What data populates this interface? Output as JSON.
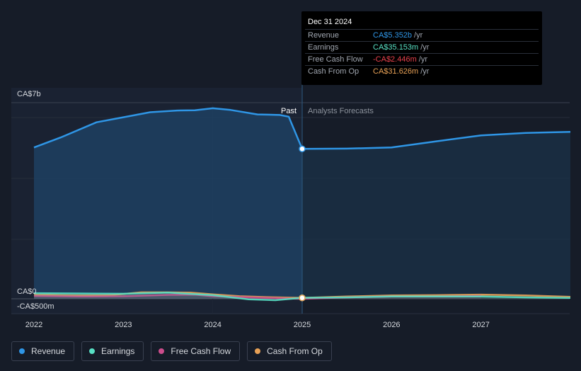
{
  "chart_data": {
    "type": "line",
    "x_axis_ticks": [
      "2022",
      "2023",
      "2024",
      "2025",
      "2026",
      "2027"
    ],
    "y_axis_labels": {
      "top": "CA$7b",
      "zero": "CA$0",
      "bottom": "-CA$500m"
    },
    "ylim": [
      -500000000,
      7000000000
    ],
    "xlim": [
      2021.75,
      2028.0
    ],
    "divider_x": 2025.0,
    "past_label": "Past",
    "forecast_label": "Analysts Forecasts",
    "series": [
      {
        "name": "Revenue",
        "color": "#2f96e6",
        "points": [
          [
            2022.0,
            5.4
          ],
          [
            2022.3,
            5.76
          ],
          [
            2022.7,
            6.3
          ],
          [
            2023.0,
            6.48
          ],
          [
            2023.3,
            6.66
          ],
          [
            2023.6,
            6.72
          ],
          [
            2023.8,
            6.73
          ],
          [
            2024.0,
            6.8
          ],
          [
            2024.2,
            6.74
          ],
          [
            2024.5,
            6.58
          ],
          [
            2024.75,
            6.56
          ],
          [
            2024.85,
            6.5
          ],
          [
            2025.0,
            5.35
          ],
          [
            2025.5,
            5.36
          ],
          [
            2026.0,
            5.4
          ],
          [
            2026.5,
            5.62
          ],
          [
            2027.0,
            5.83
          ],
          [
            2027.5,
            5.92
          ],
          [
            2028.0,
            5.96
          ]
        ]
      },
      {
        "name": "Earnings",
        "color": "#58e0c4",
        "points": [
          [
            2022.0,
            0.2
          ],
          [
            2022.5,
            0.19
          ],
          [
            2023.0,
            0.18
          ],
          [
            2023.5,
            0.22
          ],
          [
            2024.0,
            0.13
          ],
          [
            2024.4,
            -0.02
          ],
          [
            2024.7,
            -0.05
          ],
          [
            2025.0,
            0.035
          ],
          [
            2025.5,
            0.05
          ],
          [
            2026.0,
            0.08
          ],
          [
            2026.5,
            0.08
          ],
          [
            2027.0,
            0.08
          ],
          [
            2027.5,
            0.05
          ],
          [
            2028.0,
            0.03
          ]
        ]
      },
      {
        "name": "Free Cash Flow",
        "color": "#cc4d8c",
        "points": [
          [
            2022.0,
            0.1
          ],
          [
            2022.5,
            0.08
          ],
          [
            2023.0,
            0.09
          ],
          [
            2023.5,
            0.14
          ],
          [
            2023.8,
            0.15
          ],
          [
            2024.0,
            0.09
          ],
          [
            2024.5,
            0.04
          ],
          [
            2025.0,
            -0.002
          ],
          [
            2025.5,
            0.05
          ],
          [
            2026.0,
            0.08
          ],
          [
            2026.5,
            0.08
          ],
          [
            2027.0,
            0.1
          ]
        ]
      },
      {
        "name": "Cash From Op",
        "color": "#e8a156",
        "points": [
          [
            2022.0,
            0.14
          ],
          [
            2022.5,
            0.12
          ],
          [
            2022.8,
            0.12
          ],
          [
            2023.0,
            0.17
          ],
          [
            2023.2,
            0.23
          ],
          [
            2023.5,
            0.23
          ],
          [
            2023.75,
            0.22
          ],
          [
            2024.0,
            0.16
          ],
          [
            2024.3,
            0.09
          ],
          [
            2024.6,
            0.06
          ],
          [
            2025.0,
            0.032
          ],
          [
            2025.5,
            0.08
          ],
          [
            2026.0,
            0.12
          ],
          [
            2026.5,
            0.13
          ],
          [
            2027.0,
            0.15
          ],
          [
            2027.5,
            0.12
          ],
          [
            2028.0,
            0.07
          ]
        ]
      }
    ],
    "highlight_points": [
      {
        "series": "Revenue",
        "x": 2025.0,
        "y": 5.35
      },
      {
        "series": "Earnings",
        "x": 2025.0,
        "y": 0.035
      },
      {
        "series": "Cash From Op",
        "x": 2025.0,
        "y": 0.032
      }
    ],
    "value_unit_note": "y values in billions CA$"
  },
  "tooltip": {
    "date": "Dec 31 2024",
    "rows": [
      {
        "label": "Revenue",
        "value": "CA$5.352b",
        "unit": "/yr",
        "color": "#2f96e6"
      },
      {
        "label": "Earnings",
        "value": "CA$35.153m",
        "unit": "/yr",
        "color": "#58e0c4"
      },
      {
        "label": "Free Cash Flow",
        "value": "-CA$2.446m",
        "unit": "/yr",
        "color": "#e8414c"
      },
      {
        "label": "Cash From Op",
        "value": "CA$31.626m",
        "unit": "/yr",
        "color": "#e8a156"
      }
    ]
  },
  "legend": [
    {
      "label": "Revenue",
      "color": "#2f96e6"
    },
    {
      "label": "Earnings",
      "color": "#58e0c4"
    },
    {
      "label": "Free Cash Flow",
      "color": "#cc4d8c"
    },
    {
      "label": "Cash From Op",
      "color": "#e8a156"
    }
  ]
}
